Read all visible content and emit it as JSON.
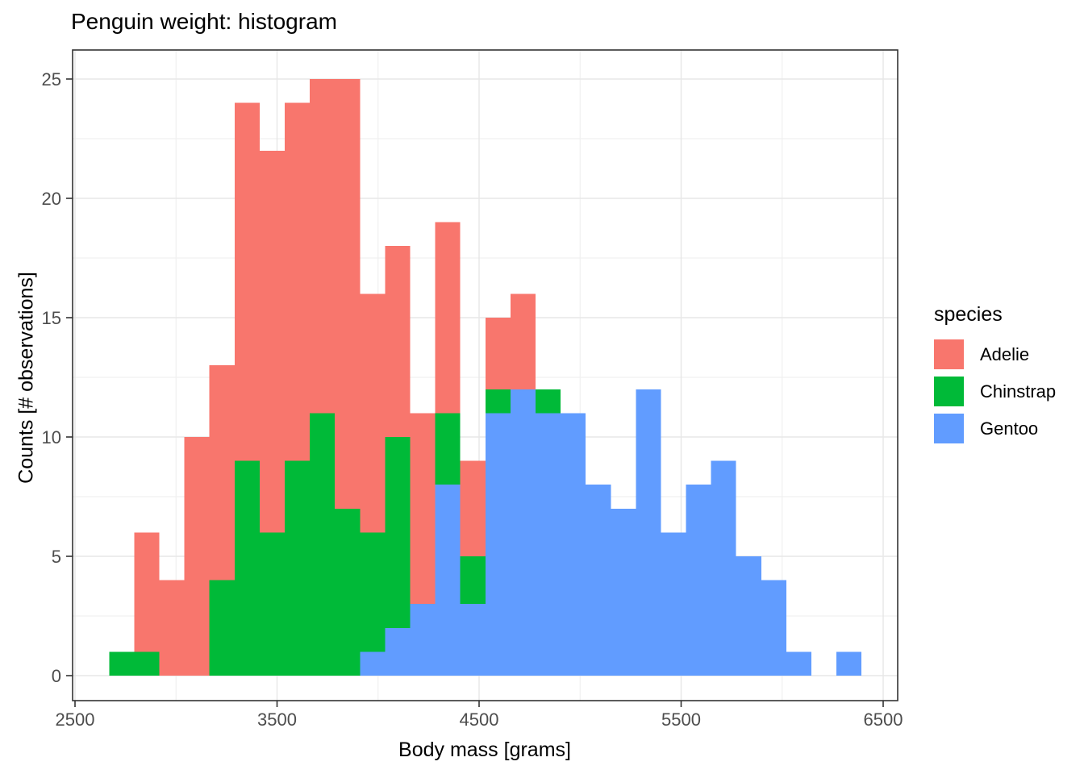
{
  "figure": {
    "title": "Penguin weight: histogram",
    "x_axis": {
      "label": "Body mass [grams]",
      "ticks": [
        2500,
        3500,
        4500,
        5500,
        6500
      ],
      "minor_ticks": [
        3000,
        4000,
        5000,
        6000
      ],
      "range": [
        2483,
        6579
      ]
    },
    "y_axis": {
      "label": "Counts [# observations]",
      "ticks": [
        0,
        5,
        10,
        15,
        20,
        25
      ],
      "minor_ticks": [
        2.5,
        7.5,
        12.5,
        17.5,
        22.5
      ],
      "range": [
        -1.05,
        26.05
      ]
    },
    "legend": {
      "title": "species"
    }
  },
  "chart_data": {
    "type": "histogram-stacked-bar",
    "title": "Penguin weight: histogram",
    "xlabel": "Body mass [grams]",
    "ylabel": "Counts [# observations]",
    "bin_width": 124.14,
    "bin_edges": [
      2669.0,
      2793.1,
      2917.2,
      3041.4,
      3165.5,
      3289.7,
      3413.8,
      3537.9,
      3662.1,
      3786.2,
      3910.3,
      4034.5,
      4158.6,
      4282.8,
      4406.9,
      4531.0,
      4655.2,
      4779.3,
      4903.4,
      5027.6,
      5151.7,
      5275.9,
      5400.0,
      5524.1,
      5648.3,
      5772.4,
      5896.6,
      6020.7,
      6144.8,
      6269.0,
      6393.1
    ],
    "stack_order_bottom_to_top": [
      "Gentoo",
      "Chinstrap",
      "Adelie"
    ],
    "grid": true,
    "legend_position": "right",
    "series": [
      {
        "name": "Adelie",
        "color": "#F8766D",
        "values": [
          0,
          5,
          4,
          10,
          9,
          15,
          16,
          15,
          14,
          18,
          10,
          8,
          8,
          8,
          4,
          3,
          4,
          0,
          0,
          0,
          0,
          0,
          0,
          0,
          0,
          0,
          0,
          0,
          0,
          0
        ]
      },
      {
        "name": "Chinstrap",
        "color": "#00BA38",
        "values": [
          1,
          1,
          0,
          0,
          4,
          9,
          6,
          9,
          11,
          7,
          5,
          8,
          0,
          3,
          2,
          1,
          0,
          1,
          0,
          0,
          0,
          0,
          0,
          0,
          0,
          0,
          0,
          0,
          0,
          0
        ]
      },
      {
        "name": "Gentoo",
        "color": "#619CFF",
        "values": [
          0,
          0,
          0,
          0,
          0,
          0,
          0,
          0,
          0,
          0,
          1,
          2,
          3,
          8,
          3,
          11,
          12,
          11,
          11,
          8,
          7,
          12,
          6,
          8,
          9,
          5,
          4,
          1,
          0,
          1
        ]
      }
    ]
  }
}
